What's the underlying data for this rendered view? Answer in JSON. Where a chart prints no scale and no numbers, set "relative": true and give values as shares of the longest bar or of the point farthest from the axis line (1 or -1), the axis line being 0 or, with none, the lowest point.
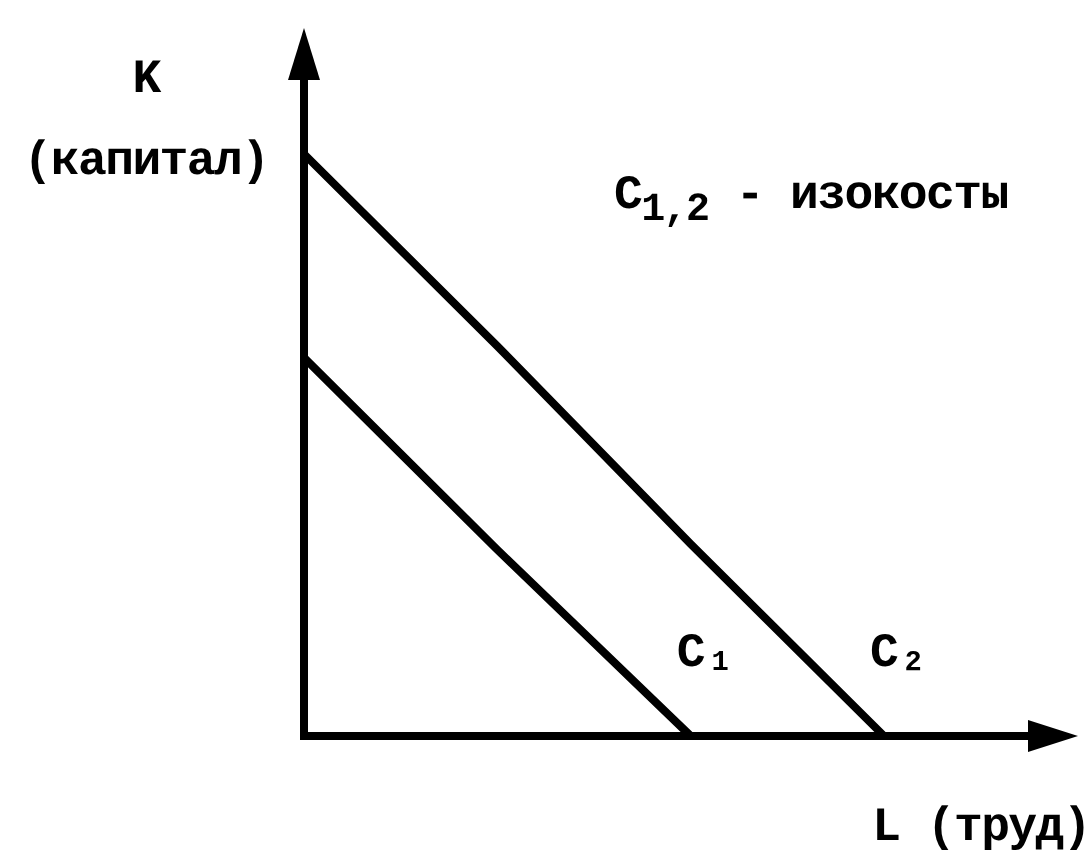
{
  "chart_data": {
    "type": "line",
    "relative": true,
    "categories": [
      null,
      null,
      null,
      null
    ],
    "xlabel": "L (труд)",
    "ylabel": "K (капитал)",
    "annotations": [
      "C$_{1,2}$ - изокосты"
    ],
    "series": [
      {
        "name": "C₁",
        "color": "#000000",
        "values": [
          0.65,
          0.32,
          0,
          null
        ]
      },
      {
        "name": "C₂",
        "color": "#000000",
        "values": [
          1,
          0.67,
          0.33,
          0
        ]
      }
    ],
    "marker": "none",
    "line_style": "solid"
  }
}
